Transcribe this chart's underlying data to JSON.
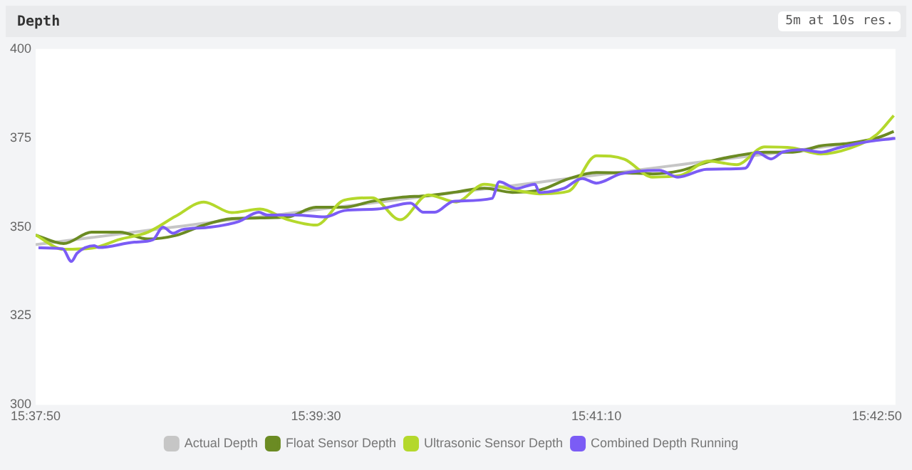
{
  "chart_data": {
    "type": "line",
    "title": "Depth",
    "annotations": [
      "5m at 10s res."
    ],
    "x": [
      15.63056,
      15.63333,
      15.63611,
      15.63889,
      15.64167,
      15.64444,
      15.64722,
      15.65,
      15.65278,
      15.65556,
      15.65833,
      15.66111,
      15.66389,
      15.66667,
      15.66944,
      15.67222,
      15.675,
      15.67778,
      15.68056,
      15.68333,
      15.68611,
      15.68889,
      15.69167,
      15.69444,
      15.69722,
      15.7,
      15.70278,
      15.70556,
      15.70833,
      15.71111,
      15.71389,
      15.71556
    ],
    "series": [
      {
        "name": "Actual Depth",
        "color": "#c6c6c6",
        "values": [
          345,
          346,
          347,
          348,
          349,
          350,
          351,
          352,
          352.8,
          353.8,
          354.8,
          355.8,
          356.7,
          357.7,
          358.7,
          359.7,
          360.7,
          361.6,
          362.6,
          363.6,
          364.6,
          365.5,
          366.5,
          367.5,
          368.5,
          369.5,
          370.4,
          371.4,
          372.4,
          373.4,
          374.4,
          375
        ]
      },
      {
        "name": "Float Sensor Depth",
        "color": "#6b8b23",
        "values": [
          347.7,
          345.3,
          348.5,
          348.5,
          346.6,
          347.6,
          350.5,
          352.3,
          352.5,
          352.8,
          355.5,
          355.5,
          357.2,
          358.3,
          358.8,
          359.8,
          360.9,
          359.7,
          360.4,
          363.5,
          365.3,
          365.2,
          364.9,
          365.8,
          368.3,
          370,
          371,
          371,
          372.8,
          373.5,
          375,
          376.8
        ]
      },
      {
        "name": "Ultrasonic Sensor Depth",
        "color": "#b4d82c",
        "values": [
          347.7,
          343.7,
          344,
          346.5,
          348.5,
          353,
          357,
          354,
          355,
          352,
          350.5,
          357.5,
          358.2,
          352,
          359,
          357,
          362,
          360.5,
          359.3,
          360,
          370,
          369,
          364,
          364.5,
          368.5,
          367.5,
          372.5,
          372.2,
          370.5,
          372,
          376,
          381.3
        ]
      },
      {
        "name": "Combined Depth Running",
        "color": "#7b5cf5",
        "x": [
          15.63084,
          15.63325,
          15.6341,
          15.63467,
          15.63637,
          15.6368,
          15.64034,
          15.64218,
          15.64317,
          15.64417,
          15.64502,
          15.64785,
          15.65068,
          15.65267,
          15.65352,
          15.65635,
          15.65919,
          15.66117,
          15.66443,
          15.66769,
          15.66897,
          15.6701,
          15.67194,
          15.67577,
          15.67648,
          15.67818,
          15.68002,
          15.68045,
          15.68285,
          15.6847,
          15.68611,
          15.68852,
          15.69235,
          15.69419,
          15.69703,
          15.70085,
          15.70199,
          15.7034,
          15.70454,
          15.70652,
          15.70836,
          15.71021,
          15.71262,
          15.71573
        ],
        "values": [
          344.1,
          343.8,
          340.3,
          342.6,
          344.7,
          344.2,
          345.7,
          346.4,
          349.9,
          348.2,
          349.2,
          349.9,
          351.5,
          354.1,
          353.3,
          353.3,
          352.8,
          354.6,
          355,
          356.7,
          354.1,
          354.1,
          357.2,
          358,
          362.7,
          360.8,
          362,
          359.7,
          360.8,
          363.6,
          362.3,
          364.9,
          365.9,
          364,
          366.2,
          366.5,
          371,
          369.1,
          371,
          371.7,
          371,
          372.3,
          373.8,
          374.9
        ]
      }
    ],
    "xlim": [
      15.63056,
      15.71573
    ],
    "xticks": [
      {
        "value": 15.63056,
        "label": "15:37:50"
      },
      {
        "value": 15.65833,
        "label": "15:39:30"
      },
      {
        "value": 15.68611,
        "label": "15:41:10"
      },
      {
        "value": 15.71389,
        "label": "15:42:50"
      }
    ],
    "ylim": [
      300,
      400
    ],
    "yticks": [
      300,
      325,
      350,
      375,
      400
    ],
    "grid": false,
    "legend": "bottom",
    "marker": "none",
    "line_style": "solid"
  }
}
